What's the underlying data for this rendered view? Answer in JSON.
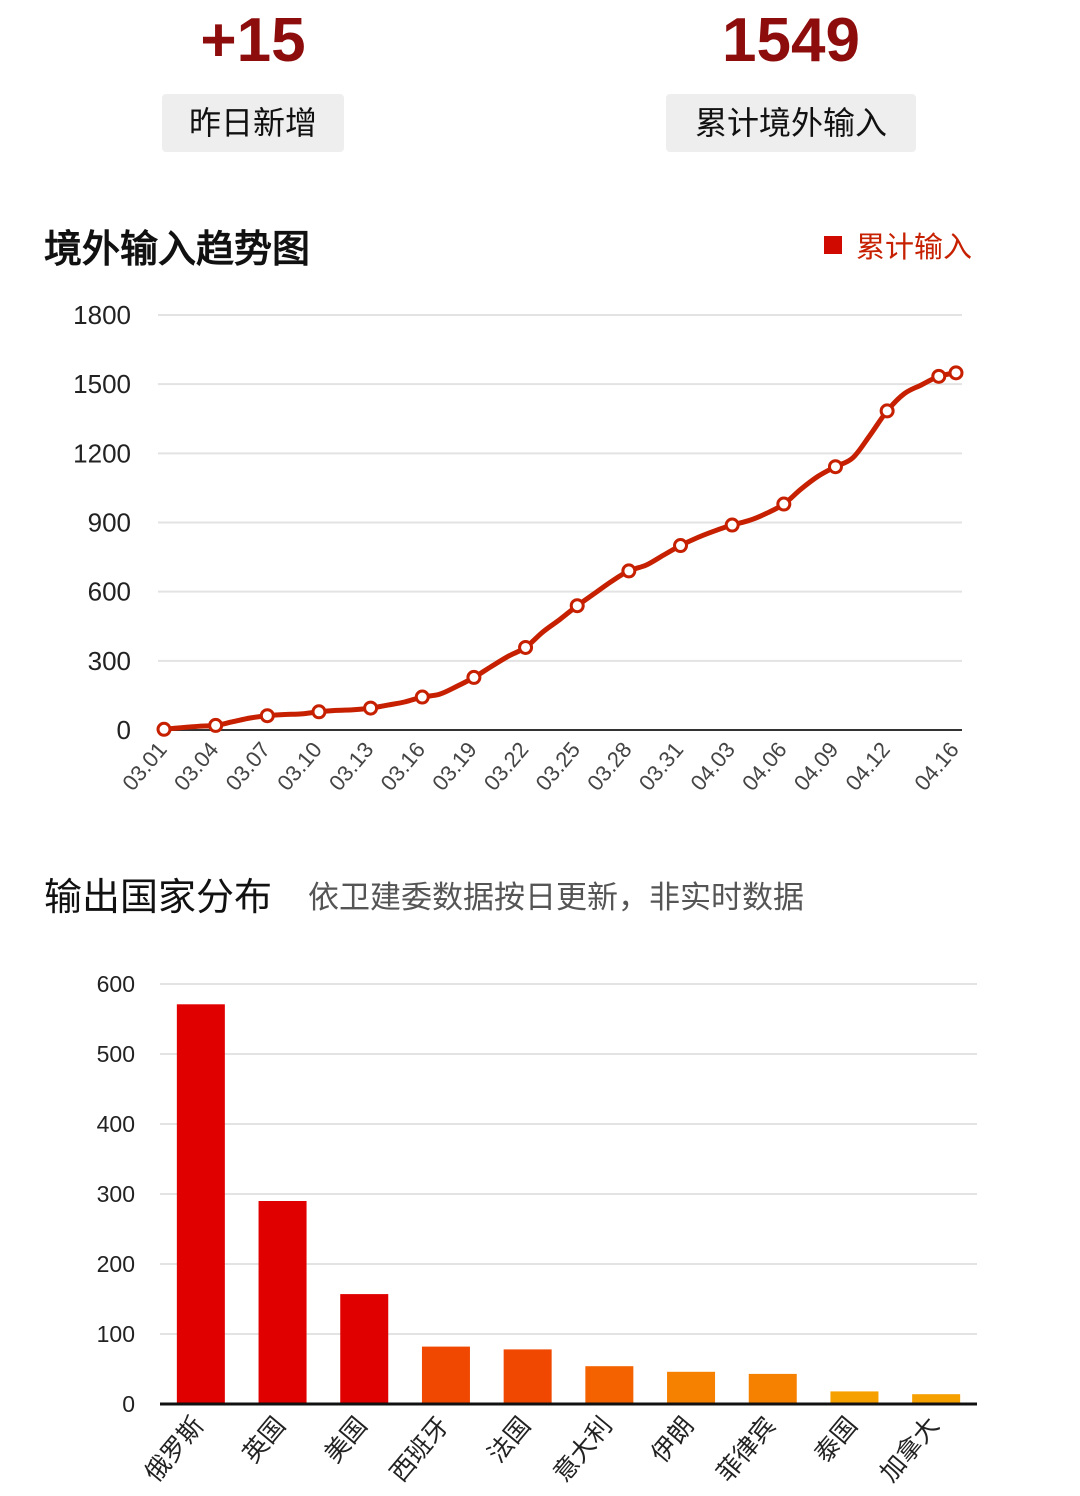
{
  "stats": {
    "new_yesterday": {
      "value": "+15",
      "label": "昨日新增"
    },
    "total_imported": {
      "value": "1549",
      "label": "累计境外输入"
    }
  },
  "colors": {
    "stat_value": "#8d0c0c",
    "line": "#c62000",
    "bar_top3": "#e00000",
    "bar_mid": "#f04800",
    "bar_low": "#f68800",
    "grid": "#e3e3e3",
    "axis": "#333333"
  },
  "trend_section": {
    "title": "境外输入趋势图",
    "legend_label": "累计输入"
  },
  "distribution_section": {
    "title": "输出国家分布",
    "subtitle": "依卫建委数据按日更新，非实时数据"
  },
  "chart_data": [
    {
      "type": "line",
      "title": "境外输入趋势图",
      "series": [
        {
          "name": "累计输入",
          "x": [
            "03.01",
            "03.02",
            "03.03",
            "03.04",
            "03.05",
            "03.06",
            "03.07",
            "03.08",
            "03.09",
            "03.10",
            "03.11",
            "03.12",
            "03.13",
            "03.14",
            "03.15",
            "03.16",
            "03.17",
            "03.18",
            "03.19",
            "03.20",
            "03.21",
            "03.22",
            "03.23",
            "03.24",
            "03.25",
            "03.26",
            "03.27",
            "03.28",
            "03.29",
            "03.30",
            "03.31",
            "04.01",
            "04.02",
            "04.03",
            "04.04",
            "04.05",
            "04.06",
            "04.07",
            "04.08",
            "04.09",
            "04.10",
            "04.11",
            "04.12",
            "04.13",
            "04.14",
            "04.15",
            "04.16"
          ],
          "values": [
            3,
            10,
            16,
            20,
            36,
            52,
            62,
            67,
            70,
            79,
            85,
            88,
            95,
            108,
            122,
            143,
            155,
            189,
            228,
            275,
            320,
            358,
            425,
            480,
            539,
            592,
            645,
            690,
            715,
            758,
            800,
            835,
            864,
            889,
            909,
            940,
            980,
            1045,
            1101,
            1142,
            1180,
            1278,
            1384,
            1459,
            1497,
            1534,
            1549
          ],
          "markers": [
            "03.01",
            "03.04",
            "03.07",
            "03.10",
            "03.13",
            "03.16",
            "03.19",
            "03.22",
            "03.25",
            "03.28",
            "03.31",
            "04.03",
            "04.06",
            "04.09",
            "04.12",
            "04.15",
            "04.16"
          ]
        }
      ],
      "x_tick_labels": [
        "03.01",
        "03.04",
        "03.07",
        "03.10",
        "03.13",
        "03.16",
        "03.19",
        "03.22",
        "03.25",
        "03.28",
        "03.31",
        "04.03",
        "04.06",
        "04.09",
        "04.12",
        "04.16"
      ],
      "y_ticks": [
        0,
        300,
        600,
        900,
        1200,
        1500,
        1800
      ],
      "ylim": [
        0,
        1800
      ],
      "grid": true,
      "legend": "top-right"
    },
    {
      "type": "bar",
      "title": "输出国家分布",
      "categories": [
        "俄罗斯",
        "英国",
        "美国",
        "西班牙",
        "法国",
        "意大利",
        "伊朗",
        "菲律宾",
        "泰国",
        "加拿大"
      ],
      "values": [
        571,
        290,
        157,
        82,
        78,
        54,
        46,
        43,
        18,
        14
      ],
      "bar_colors": [
        "#e00000",
        "#e00000",
        "#e00000",
        "#f04800",
        "#f04800",
        "#f46200",
        "#f68000",
        "#f68000",
        "#f6a000",
        "#f6a000"
      ],
      "y_ticks": [
        0,
        100,
        200,
        300,
        400,
        500,
        600
      ],
      "ylim": [
        0,
        600
      ],
      "grid": true
    }
  ]
}
